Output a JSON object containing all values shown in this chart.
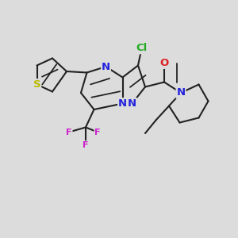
{
  "bg_color": "#dcdcdc",
  "bond_color": "#222222",
  "bond_lw": 1.5,
  "dbl_sep": 0.13,
  "atom_colors": {
    "S": "#bbbb00",
    "N": "#2222dd",
    "O": "#dd2222",
    "F": "#cc22cc",
    "Cl": "#22aa22",
    "C": "#222222"
  },
  "fs": 9.5,
  "fs_small": 8.0
}
